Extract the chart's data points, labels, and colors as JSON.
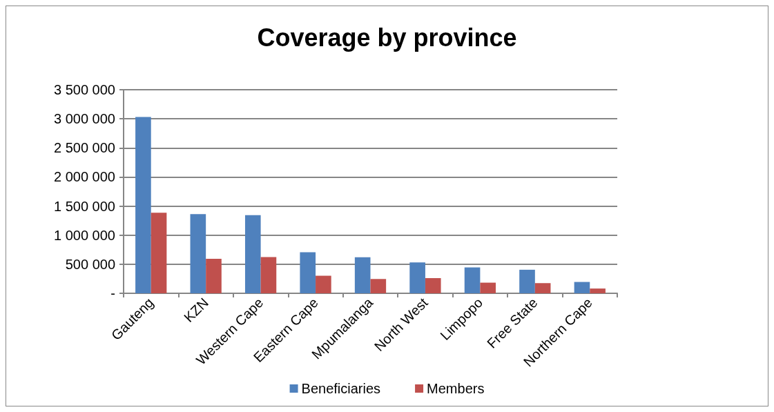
{
  "chart_data": {
    "type": "bar",
    "title": "Coverage by province",
    "categories": [
      "Gauteng",
      "KZN",
      "Western Cape",
      "Eastern Cape",
      "Mpumalanga",
      "North West",
      "Limpopo",
      "Free State",
      "Northern Cape"
    ],
    "series": [
      {
        "name": "Beneficiaries",
        "color": "#4f81bd",
        "values": [
          3030000,
          1360000,
          1345000,
          705000,
          620000,
          530000,
          445000,
          405000,
          195000
        ]
      },
      {
        "name": "Members",
        "color": "#c0504d",
        "values": [
          1385000,
          592000,
          622000,
          302000,
          246000,
          261000,
          183000,
          175000,
          82000
        ]
      }
    ],
    "ylim": [
      0,
      3500000
    ],
    "yticks": [
      {
        "value": 0,
        "label": "-"
      },
      {
        "value": 500000,
        "label": "500 000"
      },
      {
        "value": 1000000,
        "label": "1 000 000"
      },
      {
        "value": 1500000,
        "label": "1 500 000"
      },
      {
        "value": 2000000,
        "label": "2 000 000"
      },
      {
        "value": 2500000,
        "label": "2 500 000"
      },
      {
        "value": 3000000,
        "label": "3 000 000"
      },
      {
        "value": 3500000,
        "label": "3 500 000"
      }
    ],
    "grid": "y",
    "legend": "bottom"
  }
}
